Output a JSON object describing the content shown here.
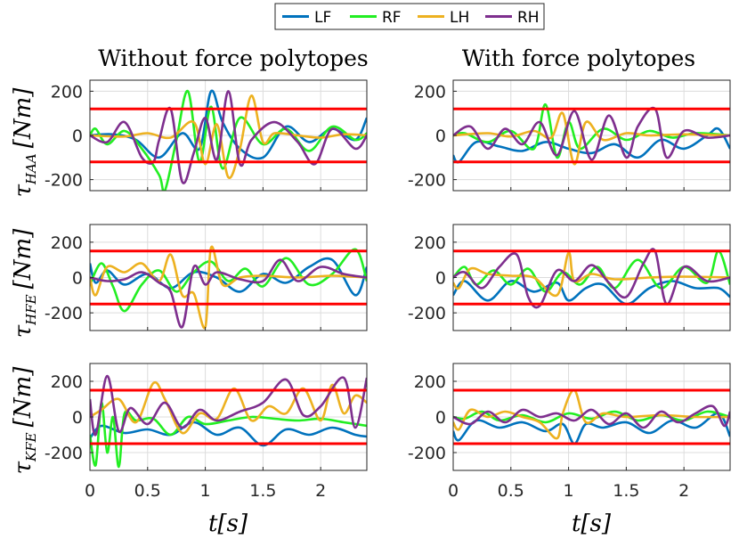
{
  "legend": [
    {
      "label": "LF",
      "color": "#0072BD"
    },
    {
      "label": "RF",
      "color": "#22EE22"
    },
    {
      "label": "LH",
      "color": "#EDB120"
    },
    {
      "label": "RH",
      "color": "#7E2F8E"
    }
  ],
  "limit_color": "#FF0000",
  "columns": [
    "Without force polytopes",
    "With force polytopes"
  ],
  "rows": [
    {
      "label_main": "τ",
      "label_sub": "HAA",
      "label_unit": "[Nm]",
      "limit": 120
    },
    {
      "label_main": "τ",
      "label_sub": "HFE",
      "label_unit": "[Nm]",
      "limit": 150
    },
    {
      "label_main": "τ",
      "label_sub": "KFE",
      "label_unit": "[Nm]",
      "limit": 150
    }
  ],
  "xlabel": "t[s]",
  "chart_data": [
    {
      "type": "line",
      "panel": "HAA / Without force polytopes",
      "xlim": [
        0,
        2.4
      ],
      "ylim": [
        -250,
        250
      ],
      "grid": true,
      "x_ticks": [
        "0",
        "0.5",
        "1",
        "1.5",
        "2"
      ],
      "y_ticks": [
        "200",
        "0",
        "-200"
      ],
      "limit": 120,
      "series": [
        {
          "name": "LF",
          "x": [
            0,
            0.2,
            0.4,
            0.6,
            0.8,
            0.95,
            1.05,
            1.15,
            1.3,
            1.5,
            1.7,
            1.9,
            2.1,
            2.3,
            2.4
          ],
          "values": [
            0,
            5,
            -20,
            -100,
            10,
            -60,
            200,
            60,
            -60,
            -100,
            40,
            -30,
            30,
            -20,
            80
          ]
        },
        {
          "name": "RF",
          "x": [
            0,
            0.05,
            0.15,
            0.3,
            0.45,
            0.6,
            0.65,
            0.75,
            0.85,
            0.95,
            1.05,
            1.15,
            1.3,
            1.5,
            1.7,
            1.9,
            2.1,
            2.3,
            2.4
          ],
          "values": [
            0,
            30,
            -40,
            20,
            -60,
            -180,
            -250,
            -20,
            200,
            -120,
            130,
            -150,
            80,
            -40,
            30,
            -70,
            40,
            -20,
            10
          ]
        },
        {
          "name": "LH",
          "x": [
            0,
            0.3,
            0.5,
            0.7,
            0.9,
            1.0,
            1.1,
            1.2,
            1.3,
            1.4,
            1.5,
            1.6,
            1.8,
            2.0,
            2.2,
            2.4
          ],
          "values": [
            0,
            -5,
            10,
            -10,
            60,
            -130,
            50,
            -190,
            -60,
            180,
            -30,
            10,
            0,
            -10,
            5,
            0
          ]
        },
        {
          "name": "RH",
          "x": [
            0,
            0.15,
            0.3,
            0.45,
            0.55,
            0.6,
            0.7,
            0.8,
            0.9,
            1.0,
            1.1,
            1.2,
            1.3,
            1.4,
            1.6,
            1.8,
            1.95,
            2.1,
            2.3,
            2.4
          ],
          "values": [
            0,
            -30,
            60,
            -100,
            -120,
            -20,
            120,
            -210,
            -80,
            80,
            -110,
            200,
            -130,
            -20,
            60,
            -30,
            -130,
            30,
            -60,
            0
          ]
        }
      ]
    },
    {
      "type": "line",
      "panel": "HAA / With force polytopes",
      "xlim": [
        0,
        2.4
      ],
      "ylim": [
        -250,
        250
      ],
      "grid": true,
      "x_ticks": [
        "0",
        "0.5",
        "1",
        "1.5",
        "2"
      ],
      "y_ticks": [
        "200",
        "0",
        "-200"
      ],
      "limit": 120,
      "series": [
        {
          "name": "LF",
          "x": [
            0,
            0.05,
            0.2,
            0.4,
            0.6,
            0.8,
            1.0,
            1.2,
            1.4,
            1.6,
            1.8,
            2.0,
            2.2,
            2.3,
            2.4
          ],
          "values": [
            -90,
            -120,
            -30,
            -50,
            -70,
            -30,
            -60,
            -80,
            -40,
            -100,
            -20,
            -60,
            0,
            30,
            -60
          ]
        },
        {
          "name": "RF",
          "x": [
            0,
            0.1,
            0.3,
            0.5,
            0.7,
            0.8,
            0.9,
            1.0,
            1.1,
            1.3,
            1.5,
            1.7,
            1.9,
            2.1,
            2.4
          ],
          "values": [
            0,
            10,
            -30,
            20,
            -60,
            140,
            -100,
            60,
            -60,
            30,
            -20,
            20,
            -10,
            10,
            0
          ]
        },
        {
          "name": "LH",
          "x": [
            0,
            0.3,
            0.5,
            0.7,
            0.85,
            0.95,
            1.05,
            1.15,
            1.3,
            1.5,
            1.7,
            2.0,
            2.4
          ],
          "values": [
            0,
            10,
            -5,
            20,
            -10,
            100,
            -130,
            60,
            -20,
            10,
            0,
            5,
            0
          ]
        },
        {
          "name": "RH",
          "x": [
            0,
            0.15,
            0.3,
            0.45,
            0.6,
            0.75,
            0.9,
            1.05,
            1.2,
            1.35,
            1.5,
            1.6,
            1.75,
            1.85,
            2.0,
            2.2,
            2.4
          ],
          "values": [
            0,
            40,
            -60,
            30,
            -40,
            60,
            -90,
            110,
            -110,
            90,
            -100,
            40,
            120,
            -100,
            20,
            -10,
            0
          ]
        }
      ]
    },
    {
      "type": "line",
      "panel": "HFE / Without force polytopes",
      "xlim": [
        0,
        2.4
      ],
      "ylim": [
        -300,
        300
      ],
      "grid": true,
      "x_ticks": [
        "0",
        "0.5",
        "1",
        "1.5",
        "2"
      ],
      "y_ticks": [
        "200",
        "0",
        "-200"
      ],
      "limit": 150,
      "series": [
        {
          "name": "LF",
          "x": [
            0,
            0.05,
            0.15,
            0.3,
            0.5,
            0.7,
            0.9,
            1.1,
            1.3,
            1.5,
            1.7,
            1.9,
            2.1,
            2.3,
            2.4
          ],
          "values": [
            80,
            -30,
            40,
            -40,
            20,
            -60,
            30,
            0,
            -80,
            20,
            -30,
            60,
            100,
            -100,
            60
          ]
        },
        {
          "name": "RF",
          "x": [
            0,
            0.1,
            0.2,
            0.3,
            0.45,
            0.6,
            0.75,
            0.9,
            1.05,
            1.2,
            1.35,
            1.5,
            1.7,
            1.9,
            2.1,
            2.3,
            2.4
          ],
          "values": [
            -40,
            80,
            -50,
            -190,
            -40,
            40,
            -80,
            30,
            90,
            -20,
            50,
            -50,
            110,
            -40,
            20,
            160,
            -20
          ]
        },
        {
          "name": "LH",
          "x": [
            0,
            0.05,
            0.15,
            0.3,
            0.45,
            0.6,
            0.7,
            0.8,
            0.9,
            1.0,
            1.05,
            1.15,
            1.3,
            1.5,
            1.8,
            2.1,
            2.4
          ],
          "values": [
            0,
            -100,
            60,
            30,
            80,
            -20,
            130,
            -100,
            -90,
            -280,
            170,
            -40,
            0,
            10,
            0,
            10,
            0
          ]
        },
        {
          "name": "RH",
          "x": [
            0,
            0.15,
            0.3,
            0.45,
            0.6,
            0.7,
            0.8,
            0.9,
            1.0,
            1.1,
            1.3,
            1.5,
            1.65,
            1.8,
            2.0,
            2.2,
            2.4
          ],
          "values": [
            0,
            -20,
            -10,
            30,
            -30,
            -80,
            -280,
            60,
            -40,
            30,
            -10,
            -20,
            100,
            -20,
            60,
            20,
            0
          ]
        }
      ]
    },
    {
      "type": "line",
      "panel": "HFE / With force polytopes",
      "xlim": [
        0,
        2.4
      ],
      "ylim": [
        -300,
        300
      ],
      "grid": true,
      "x_ticks": [
        "0",
        "0.5",
        "1",
        "1.5",
        "2"
      ],
      "y_ticks": [
        "200",
        "0",
        "-200"
      ],
      "limit": 150,
      "series": [
        {
          "name": "LF",
          "x": [
            0,
            0.1,
            0.3,
            0.5,
            0.7,
            0.9,
            1.0,
            1.15,
            1.3,
            1.5,
            1.7,
            1.9,
            2.1,
            2.3,
            2.4
          ],
          "values": [
            -100,
            -20,
            -130,
            -20,
            -80,
            -30,
            -130,
            -60,
            -40,
            -150,
            -60,
            -20,
            -60,
            -60,
            -110
          ]
        },
        {
          "name": "RF",
          "x": [
            0,
            0.1,
            0.2,
            0.35,
            0.5,
            0.65,
            0.8,
            0.95,
            1.1,
            1.25,
            1.4,
            1.6,
            1.8,
            2.0,
            2.2,
            2.3,
            2.4
          ],
          "values": [
            0,
            60,
            -40,
            40,
            -40,
            50,
            -80,
            30,
            -40,
            60,
            -60,
            100,
            -60,
            60,
            -30,
            150,
            -40
          ]
        },
        {
          "name": "LH",
          "x": [
            0,
            0.05,
            0.15,
            0.3,
            0.5,
            0.7,
            0.9,
            1.0,
            1.05,
            1.2,
            1.4,
            1.7,
            2.0,
            2.4
          ],
          "values": [
            -30,
            -60,
            50,
            20,
            10,
            0,
            -100,
            140,
            -20,
            20,
            -10,
            0,
            5,
            0
          ]
        },
        {
          "name": "RH",
          "x": [
            0,
            0.1,
            0.25,
            0.4,
            0.55,
            0.65,
            0.75,
            0.9,
            1.05,
            1.2,
            1.35,
            1.5,
            1.65,
            1.75,
            1.85,
            2.0,
            2.2,
            2.4
          ],
          "values": [
            0,
            30,
            -60,
            60,
            130,
            -110,
            -160,
            40,
            -20,
            70,
            -30,
            -110,
            80,
            150,
            -150,
            60,
            -20,
            0
          ]
        }
      ]
    },
    {
      "type": "line",
      "panel": "KFE / Without force polytopes",
      "xlim": [
        0,
        2.4
      ],
      "ylim": [
        -300,
        300
      ],
      "grid": true,
      "x_ticks": [
        "0",
        "0.5",
        "1",
        "1.5",
        "2"
      ],
      "y_ticks": [
        "200",
        "0",
        "-200"
      ],
      "limit": 150,
      "series": [
        {
          "name": "LF",
          "x": [
            0,
            0.1,
            0.3,
            0.5,
            0.7,
            0.9,
            1.1,
            1.3,
            1.5,
            1.7,
            1.9,
            2.1,
            2.3,
            2.4
          ],
          "values": [
            -120,
            -50,
            -90,
            -70,
            -100,
            -30,
            -100,
            -60,
            -160,
            -70,
            -100,
            -60,
            -100,
            -110
          ]
        },
        {
          "name": "RF",
          "x": [
            0,
            0.05,
            0.1,
            0.15,
            0.2,
            0.25,
            0.3,
            0.4,
            0.55,
            0.7,
            0.85,
            1.0,
            1.2,
            1.4,
            1.6,
            1.8,
            2.0,
            2.2,
            2.4
          ],
          "values": [
            -100,
            -270,
            80,
            -200,
            0,
            -280,
            20,
            -20,
            -10,
            -100,
            0,
            -40,
            -20,
            0,
            -10,
            -20,
            -10,
            -30,
            -50
          ]
        },
        {
          "name": "LH",
          "x": [
            0,
            0.1,
            0.25,
            0.4,
            0.55,
            0.65,
            0.8,
            0.95,
            1.1,
            1.25,
            1.4,
            1.55,
            1.7,
            1.85,
            2.0,
            2.1,
            2.2,
            2.3,
            2.4
          ],
          "values": [
            0,
            40,
            100,
            -30,
            190,
            100,
            -90,
            20,
            -10,
            160,
            -20,
            60,
            20,
            160,
            -20,
            180,
            20,
            120,
            80
          ]
        },
        {
          "name": "RH",
          "x": [
            0,
            0.05,
            0.15,
            0.25,
            0.35,
            0.5,
            0.65,
            0.8,
            0.95,
            1.1,
            1.3,
            1.5,
            1.7,
            1.85,
            2.0,
            2.2,
            2.3,
            2.4
          ],
          "values": [
            100,
            -100,
            230,
            -80,
            50,
            -40,
            80,
            -60,
            40,
            -20,
            30,
            80,
            210,
            10,
            60,
            220,
            -60,
            220
          ]
        }
      ]
    },
    {
      "type": "line",
      "panel": "KFE / With force polytopes",
      "xlim": [
        0,
        2.4
      ],
      "ylim": [
        -300,
        300
      ],
      "grid": true,
      "x_ticks": [
        "0",
        "0.5",
        "1",
        "1.5",
        "2"
      ],
      "y_ticks": [
        "200",
        "0",
        "-200"
      ],
      "limit": 150,
      "series": [
        {
          "name": "LF",
          "x": [
            0,
            0.05,
            0.2,
            0.4,
            0.6,
            0.8,
            0.95,
            1.05,
            1.15,
            1.3,
            1.5,
            1.7,
            1.9,
            2.1,
            2.3,
            2.4
          ],
          "values": [
            -80,
            -130,
            -20,
            -60,
            -30,
            -80,
            -40,
            -150,
            -40,
            -60,
            -30,
            -90,
            -20,
            -60,
            20,
            -110
          ]
        },
        {
          "name": "RF",
          "x": [
            0,
            0.1,
            0.25,
            0.4,
            0.6,
            0.8,
            1.0,
            1.2,
            1.4,
            1.6,
            1.8,
            2.0,
            2.2,
            2.4
          ],
          "values": [
            0,
            -10,
            30,
            -20,
            10,
            -30,
            20,
            -10,
            30,
            -20,
            10,
            -20,
            30,
            0
          ]
        },
        {
          "name": "LH",
          "x": [
            0,
            0.05,
            0.15,
            0.3,
            0.45,
            0.6,
            0.75,
            0.9,
            0.95,
            1.05,
            1.15,
            1.3,
            1.5,
            1.8,
            2.1,
            2.4
          ],
          "values": [
            -30,
            -70,
            40,
            0,
            30,
            0,
            -30,
            -120,
            20,
            150,
            -30,
            20,
            0,
            10,
            0,
            0
          ]
        },
        {
          "name": "RH",
          "x": [
            0,
            0.15,
            0.3,
            0.45,
            0.6,
            0.75,
            0.9,
            1.05,
            1.2,
            1.35,
            1.5,
            1.65,
            1.8,
            1.95,
            2.1,
            2.25,
            2.35,
            2.4
          ],
          "values": [
            0,
            -40,
            30,
            -30,
            40,
            0,
            20,
            -20,
            40,
            -40,
            20,
            -60,
            30,
            -30,
            20,
            60,
            -50,
            30
          ]
        }
      ]
    }
  ]
}
